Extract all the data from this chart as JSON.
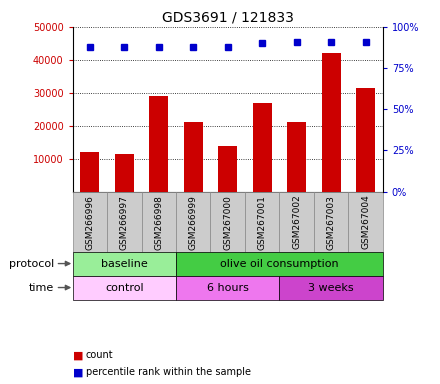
{
  "title": "GDS3691 / 121833",
  "samples": [
    "GSM266996",
    "GSM266997",
    "GSM266998",
    "GSM266999",
    "GSM267000",
    "GSM267001",
    "GSM267002",
    "GSM267003",
    "GSM267004"
  ],
  "counts": [
    12000,
    11500,
    29000,
    21000,
    14000,
    27000,
    21000,
    42000,
    31500
  ],
  "percentile_ranks": [
    87.5,
    87.5,
    87.5,
    87.5,
    87.5,
    90,
    91,
    91,
    91
  ],
  "count_color": "#cc0000",
  "percentile_color": "#0000cc",
  "ylim_left": [
    0,
    50000
  ],
  "ylim_right": [
    0,
    100
  ],
  "yticks_left": [
    10000,
    20000,
    30000,
    40000,
    50000
  ],
  "yticks_right": [
    0,
    25,
    50,
    75,
    100
  ],
  "protocol_groups": [
    {
      "label": "baseline",
      "start": 0,
      "end": 3,
      "color": "#99ee99"
    },
    {
      "label": "olive oil consumption",
      "start": 3,
      "end": 9,
      "color": "#44cc44"
    }
  ],
  "time_groups": [
    {
      "label": "control",
      "start": 0,
      "end": 3,
      "color": "#ffccff"
    },
    {
      "label": "6 hours",
      "start": 3,
      "end": 6,
      "color": "#ee77ee"
    },
    {
      "label": "3 weeks",
      "start": 6,
      "end": 9,
      "color": "#cc44cc"
    }
  ],
  "sample_box_color": "#cccccc",
  "sample_box_edge_color": "#888888",
  "legend_count_label": "count",
  "legend_percentile_label": "percentile rank within the sample",
  "title_fontsize": 10,
  "tick_fontsize": 7,
  "label_fontsize": 8,
  "sample_fontsize": 6.5
}
